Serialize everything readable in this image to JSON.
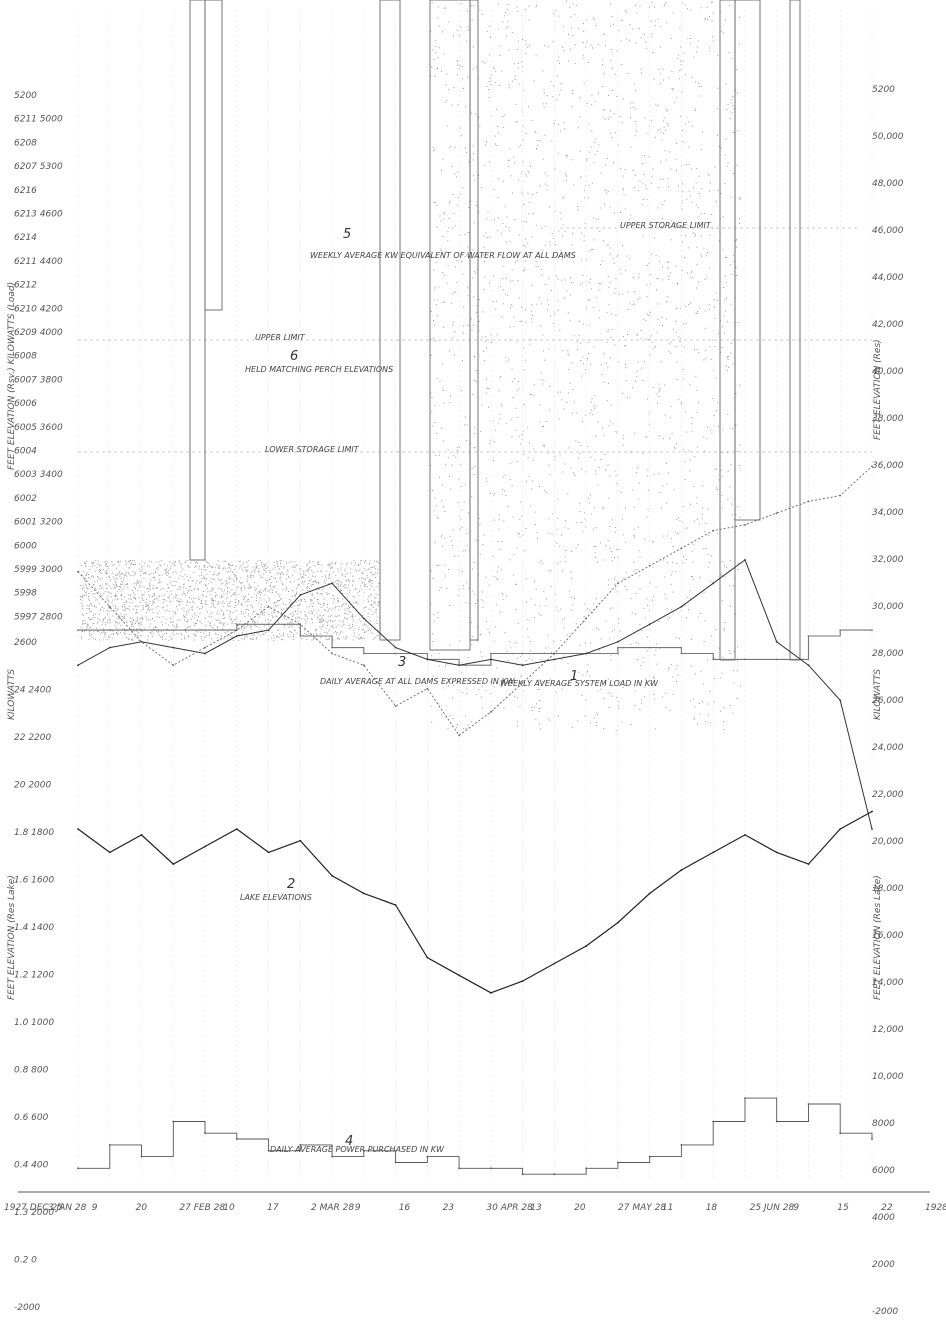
{
  "chart_data": {
    "type": "line",
    "left_axis_top": [
      "5200",
      "6211 5000",
      "6208",
      "6207 5300",
      "6216",
      "6213 4600",
      "6214",
      "6211 4400",
      "6212",
      "6210 4200",
      "6209 4000",
      "6008",
      "6007 3800",
      "6006",
      "6005 3600",
      "6004",
      "6003 3400",
      "6002",
      "6001 3200",
      "6000",
      "5999 3000",
      "5998",
      "5997 2800"
    ],
    "left_axis_bottom": [
      "2600",
      "24 2400",
      "22 2200",
      "20 2000",
      "1.8 1800",
      "1.6 1600",
      "1.4 1400",
      "1.2 1200",
      "1.0 1000",
      "0.8 800",
      "0.6 600",
      "0.4 400",
      "1.3 2000",
      "0.2 0",
      "-2000"
    ],
    "right_axis": [
      "5200",
      "50,000",
      "48,000",
      "46,000",
      "44,000",
      "42,000",
      "40,000",
      "38,000",
      "36,000",
      "34,000",
      "32,000",
      "30,000",
      "28,000",
      "26,000",
      "24,000",
      "22,000",
      "20,000",
      "18,000",
      "16,000",
      "14,000",
      "12,000",
      "10,000",
      "8000",
      "6000",
      "4000",
      "2000",
      "-2000"
    ],
    "left_axis_label_top": "FEET ELEVATION (Rsv.) KILOWATTS (Load)",
    "left_axis_label_mid": "KILOWATTS",
    "left_axis_label_bottom": "FEET ELEVATION (Res Lake)",
    "right_axis_label_top": "FEET ELEVATION (Res)",
    "right_axis_label_mid": "KILOWATTS",
    "right_axis_label_bottom": "FEET ELEVATION (Res Lake)",
    "x_tick_labels": [
      "1927 DEC 25",
      "3 JAN 28",
      "9",
      "20",
      "27 FEB 28",
      "10",
      "17",
      "2 MAR 28",
      "9",
      "16",
      "23",
      "30 APR 28",
      "13",
      "20",
      "27 MAY 28",
      "11",
      "18",
      "25 JUN 28",
      "9",
      "15",
      "22",
      "1928"
    ],
    "annotations": {
      "s5": "WEEKLY AVERAGE KW EQUIVALENT OF WATER FLOW AT ALL DAMS",
      "s6": "HELD MATCHING PERCH ELEVATIONS",
      "upper_limit": "UPPER LIMIT",
      "upper_limit_right": "UPPER STORAGE LIMIT",
      "lower_limit": "LOWER STORAGE LIMIT",
      "s3": "DAILY AVERAGE AT ALL DAMS EXPRESSED IN KW",
      "s1": "WEEKLY AVERAGE SYSTEM LOAD IN KW",
      "s2": "LAKE ELEVATIONS",
      "s4": "DAILY AVERAGE POWER PURCHASED IN KW"
    },
    "series_numbers": {
      "s1": "1",
      "s2": "2",
      "s3": "3",
      "s4": "4",
      "s5": "5",
      "s6": "6"
    },
    "series": [
      {
        "id": "s1",
        "y": [
          47.0,
          47.0,
          47.0,
          47.0,
          47.0,
          47.5,
          47.5,
          46.5,
          45.5,
          45.0,
          45.0,
          44.5,
          44.0,
          45.0,
          45.0,
          45.0,
          45.0,
          45.5,
          45.5,
          45.0,
          44.5,
          44.5,
          44.5,
          46.5,
          47.0,
          47.0
        ]
      },
      {
        "id": "s3",
        "y": [
          44.0,
          45.5,
          46.0,
          45.5,
          45.0,
          46.5,
          47.0,
          50.0,
          51.0,
          48.0,
          45.5,
          44.5,
          44.0,
          44.5,
          44.0,
          44.5,
          45.0,
          46.0,
          47.5,
          49.0,
          51.0,
          53.0,
          46.0,
          44.0,
          41.0,
          30.0
        ]
      },
      {
        "id": "s4",
        "y": [
          1.0,
          3.0,
          2.0,
          5.0,
          4.0,
          3.5,
          2.5,
          3.0,
          2.0,
          2.5,
          1.5,
          2.0,
          1.0,
          1.0,
          0.5,
          0.5,
          1.0,
          1.5,
          2.0,
          3.0,
          5.0,
          7.0,
          5.0,
          6.5,
          4.0,
          3.5
        ]
      },
      {
        "id": "s6",
        "y": [
          30.0,
          28.0,
          29.5,
          27.0,
          28.5,
          30.0,
          28.0,
          29.0,
          26.0,
          24.5,
          23.5,
          19.0,
          17.5,
          16.0,
          17.0,
          18.5,
          20.0,
          22.0,
          24.5,
          26.5,
          28.0,
          29.5,
          28.0,
          27.0,
          30.0,
          31.5
        ]
      },
      {
        "id": "s2",
        "y": [
          52.0,
          49.0,
          46.0,
          44.0,
          45.5,
          47.0,
          49.0,
          47.5,
          45.0,
          44.0,
          40.5,
          42.0,
          38.0,
          40.0,
          42.5,
          45.0,
          48.0,
          51.0,
          52.5,
          54.0,
          55.5,
          56.0,
          57.0,
          58.0,
          58.5,
          61.0
        ]
      }
    ]
  }
}
